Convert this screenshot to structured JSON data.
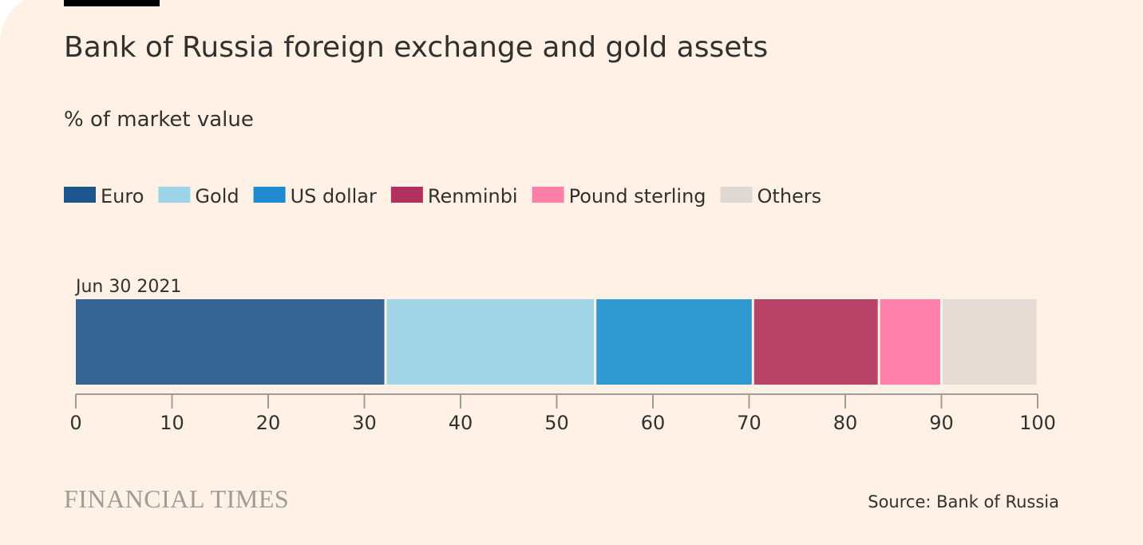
{
  "colors": {
    "background": "#fff1e5",
    "top_bar": "#000000",
    "axis": "#a09b94",
    "text": "#33302e",
    "brand": "#a09b94"
  },
  "brand": "FINANCIAL TIMES",
  "source": "Source: Bank of Russia",
  "chart_data": {
    "type": "bar",
    "orientation": "horizontal",
    "stacked": true,
    "title": "Bank of Russia foreign exchange and gold assets",
    "subtitle": "% of market value",
    "categories": [
      "Jun 30 2021"
    ],
    "series": [
      {
        "name": "Euro",
        "values": [
          32.2
        ],
        "color": "#1e558c",
        "bar_color": "#366595"
      },
      {
        "name": "Gold",
        "values": [
          21.8
        ],
        "color": "#9dd4ea",
        "bar_color": "#a2d6e6"
      },
      {
        "name": "US dollar",
        "values": [
          16.4
        ],
        "color": "#1f8ad0",
        "bar_color": "#3199d1"
      },
      {
        "name": "Renminbi",
        "values": [
          13.1
        ],
        "color": "#b0305e",
        "bar_color": "#b94268"
      },
      {
        "name": "Pound sterling",
        "values": [
          6.5
        ],
        "color": "#ff7fab",
        "bar_color": "#fe81ab"
      },
      {
        "name": "Others",
        "values": [
          10.0
        ],
        "color": "#e0d8d2",
        "bar_color": "#e4dbd5"
      }
    ],
    "xlim": [
      0,
      100
    ],
    "xticks": [
      0,
      10,
      20,
      30,
      40,
      50,
      60,
      70,
      80,
      90,
      100
    ],
    "grid": false,
    "legend_placement": "top-left"
  }
}
